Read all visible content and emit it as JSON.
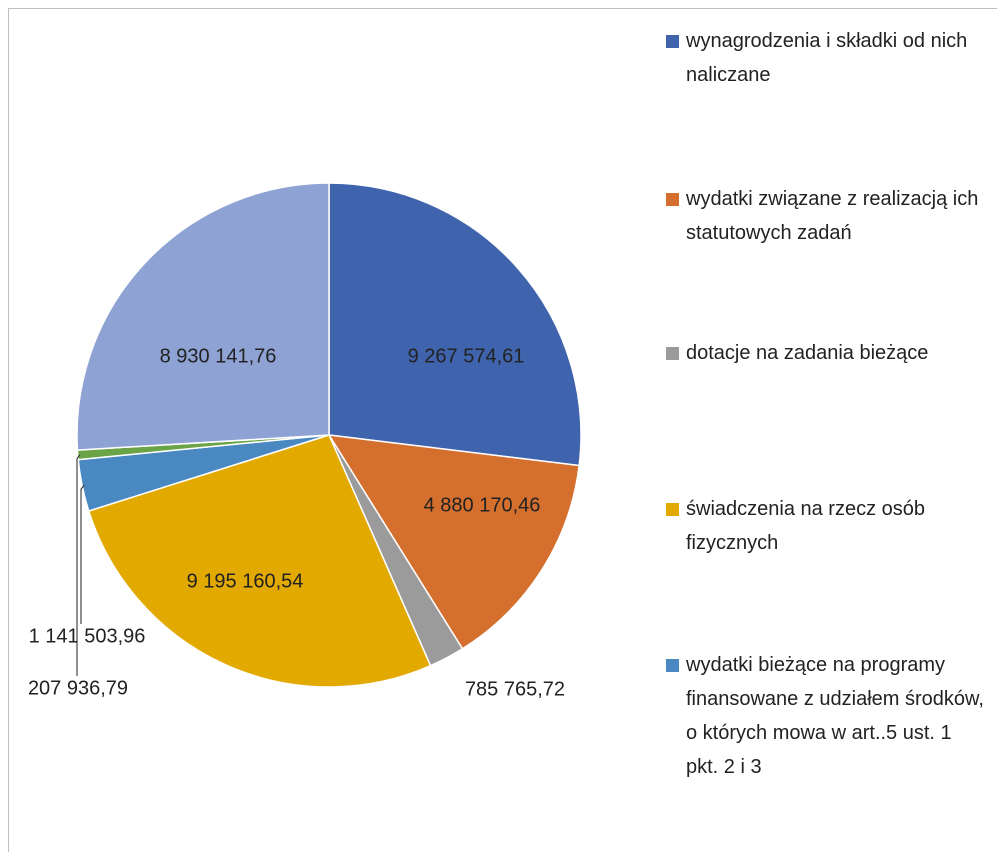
{
  "chart_data": {
    "type": "pie",
    "categories": [
      "wynagrodzenia i składki od nich naliczane",
      "wydatki związane z realizacją ich statutowych zadań",
      "dotacje na zadania bieżące",
      "świadczenia na rzecz osób fizycznych",
      "wydatki bieżące na programy finansowane z udziałem środków, o których mowa w art..5 ust. 1 pkt. 2 i 3",
      null,
      null
    ],
    "values": [
      9267574.61,
      4880170.46,
      785765.72,
      9195160.54,
      1141503.96,
      207936.79,
      8930141.76
    ],
    "value_labels": [
      "9 267 574,61",
      "4 880 170,46",
      "785 765,72",
      "9 195 160,54",
      "1 141 503,96",
      "207 936,79",
      "8 930 141,76"
    ],
    "colors": [
      "#3f64ad",
      "#d56f2d",
      "#9b9b9b",
      "#e2a900",
      "#4a88c2",
      "#6ba447",
      "#8ea2d4"
    ],
    "legend": "right"
  }
}
